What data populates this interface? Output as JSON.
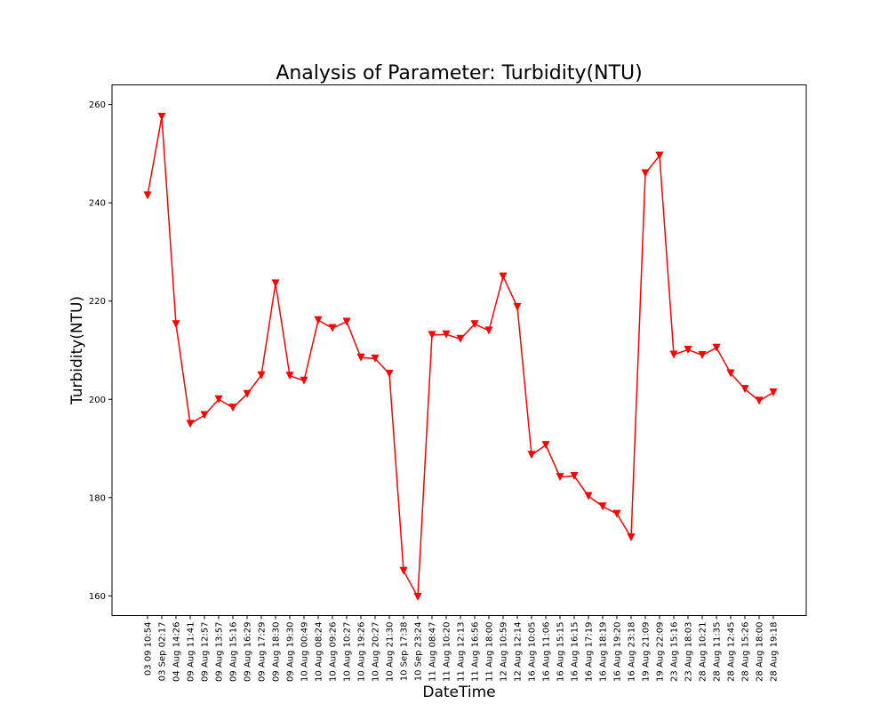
{
  "chart_data": {
    "type": "line",
    "title": "Analysis of Parameter: Turbidity(NTU)",
    "xlabel": "DateTime",
    "ylabel": "Turbidity(NTU)",
    "ylim": [
      156,
      264
    ],
    "yticks": [
      160,
      180,
      200,
      220,
      240,
      260
    ],
    "grid": false,
    "legend": "none",
    "marker": "triangle-down",
    "color": "#ff0000",
    "categories": [
      "03 09 10:54",
      "03 Sep 02:17",
      "04 Aug 14:26",
      "09 Aug 11:41",
      "09 Aug 12:57",
      "09 Aug 13:57",
      "09 Aug 15:16",
      "09 Aug 16:29",
      "09 Aug 17:29",
      "09 Aug 18:30",
      "09 Aug 19:30",
      "10 Aug 00:49",
      "10 Aug 08:24",
      "10 Aug 09:26",
      "10 Aug 10:27",
      "10 Aug 19:26",
      "10 Aug 20:27",
      "10 Aug 21:30",
      "10 Sep 17:38",
      "10 Sep 23:24",
      "11 Aug 08:47",
      "11 Aug 10:20",
      "11 Aug 12:13",
      "11 Aug 16:56",
      "11 Aug 18:00",
      "12 Aug 10:59",
      "12 Aug 12:14",
      "16 Aug 10:05",
      "16 Aug 11:06",
      "16 Aug 15:15",
      "16 Aug 16:15",
      "16 Aug 17:19",
      "16 Aug 18:19",
      "16 Aug 19:20",
      "16 Aug 23:18",
      "19 Aug 21:09",
      "19 Aug 22:09",
      "23 Aug 15:16",
      "23 Aug 18:03",
      "28 Aug 10:21",
      "28 Aug 11:35",
      "28 Aug 12:45",
      "28 Aug 15:26",
      "28 Aug 18:00",
      "28 Aug 19:18"
    ],
    "values": [
      241.5,
      257.5,
      215.3,
      195.0,
      196.8,
      200.0,
      198.3,
      201.1,
      204.9,
      223.6,
      204.8,
      203.8,
      216.1,
      214.5,
      215.8,
      208.5,
      208.3,
      205.2,
      165.1,
      159.8,
      213.1,
      213.2,
      212.3,
      215.3,
      214.0,
      225.0,
      218.8,
      188.7,
      190.7,
      184.2,
      184.4,
      180.3,
      178.2,
      176.7,
      171.9,
      246.0,
      249.6,
      209.1,
      210.1,
      209.0,
      210.5,
      205.3,
      202.1,
      199.7,
      201.4
    ]
  }
}
